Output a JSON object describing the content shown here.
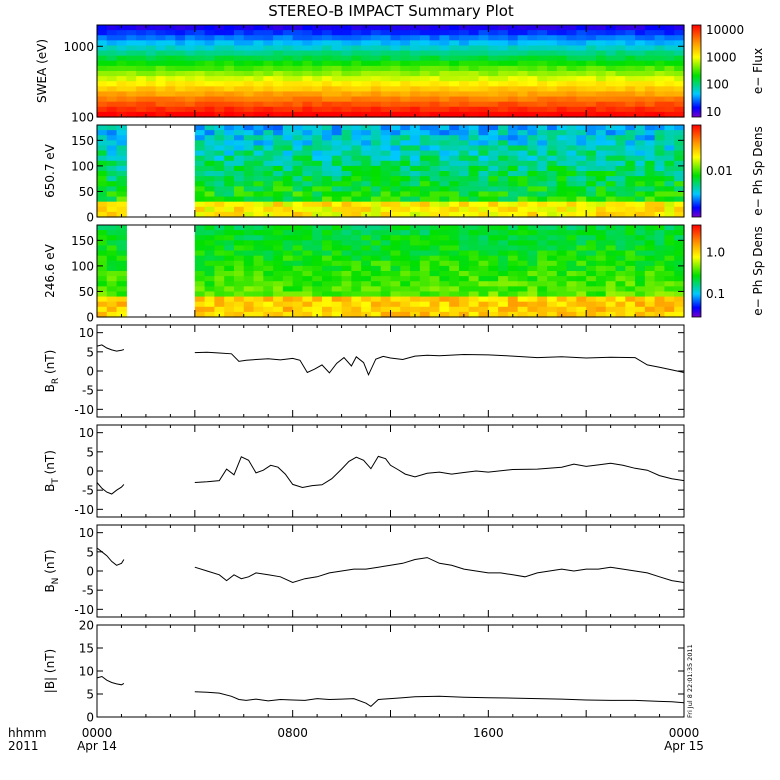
{
  "title": "STEREO-B IMPACT Summary Plot",
  "stamp": "Fri Jul 8 22:01:35 2011",
  "x_axis": {
    "row1_label": "hhmm",
    "row2_label": "2011",
    "ticks": [
      {
        "hour": 0,
        "top": "0000",
        "bottom": "Apr 14"
      },
      {
        "hour": 8,
        "top": "0800",
        "bottom": ""
      },
      {
        "hour": 16,
        "top": "1600",
        "bottom": ""
      },
      {
        "hour": 24,
        "top": "0000",
        "bottom": "Apr 15"
      }
    ]
  },
  "chart_data": [
    {
      "type": "heatmap",
      "ylabel": "SWEA (eV)",
      "yscale": "log",
      "ylim": [
        100,
        2000
      ],
      "yticks": [
        "1000",
        "100"
      ],
      "colorbar": {
        "label": "e− Flux",
        "scale": "log",
        "ticks": [
          "10000",
          "1000",
          "100",
          "10"
        ]
      }
    },
    {
      "type": "heatmap",
      "ylabel": "650.7 eV",
      "ylim": [
        0,
        180
      ],
      "yticks": [
        "150",
        "100",
        "50",
        "0"
      ],
      "data_gaps_hours": [
        [
          1.1,
          4.0
        ]
      ],
      "colorbar": {
        "label": "e− Ph Sp Dens",
        "scale": "log",
        "ticks": [
          "0.01"
        ]
      }
    },
    {
      "type": "heatmap",
      "ylabel": "246.6 eV",
      "ylim": [
        0,
        180
      ],
      "yticks": [
        "150",
        "100",
        "50",
        "0"
      ],
      "data_gaps_hours": [
        [
          1.1,
          4.0
        ]
      ],
      "colorbar": {
        "label": "e− Ph Sp Dens",
        "scale": "log",
        "ticks": [
          "1.0",
          "0.1"
        ]
      }
    },
    {
      "type": "line",
      "ylabel": "B_R (nT)",
      "ylabel_main": "B",
      "ylabel_sub": "R",
      "ylabel_unit": " (nT)",
      "ylim": [
        -12,
        12
      ],
      "yticks": [
        "10",
        "5",
        "0",
        "-5",
        "-10"
      ],
      "x": [
        0,
        0.2,
        0.4,
        0.6,
        0.8,
        1.0,
        1.1,
        4.0,
        4.5,
        5.0,
        5.5,
        5.8,
        6.1,
        6.5,
        7.0,
        7.5,
        8.0,
        8.3,
        8.6,
        8.9,
        9.2,
        9.5,
        9.8,
        10.1,
        10.4,
        10.6,
        10.9,
        11.1,
        11.4,
        11.7,
        12.0,
        12.5,
        13.0,
        13.5,
        14.0,
        15.0,
        16.0,
        17.0,
        18.0,
        19.0,
        20.0,
        21.0,
        22.0,
        22.5,
        23.0,
        23.5,
        24.0
      ],
      "y": [
        6.5,
        6.8,
        6.0,
        5.5,
        5.2,
        5.4,
        5.6,
        4.8,
        4.9,
        4.7,
        4.5,
        2.5,
        2.8,
        3.0,
        3.2,
        2.9,
        3.3,
        2.8,
        -0.4,
        0.5,
        1.6,
        -0.5,
        2.0,
        3.5,
        1.3,
        3.7,
        2.2,
        -1.0,
        3.1,
        3.8,
        3.4,
        3.0,
        3.9,
        4.1,
        4.0,
        4.3,
        4.2,
        3.9,
        3.5,
        3.7,
        3.4,
        3.6,
        3.5,
        1.6,
        1.0,
        0.3,
        -0.4
      ]
    },
    {
      "type": "line",
      "ylabel": "B_T (nT)",
      "ylabel_main": "B",
      "ylabel_sub": "T",
      "ylabel_unit": " (nT)",
      "ylim": [
        -12,
        12
      ],
      "yticks": [
        "10",
        "5",
        "0",
        "-5",
        "-10"
      ],
      "x": [
        0,
        0.2,
        0.4,
        0.6,
        0.8,
        1.0,
        1.1,
        4.0,
        4.5,
        5.0,
        5.3,
        5.6,
        5.9,
        6.2,
        6.5,
        6.8,
        7.1,
        7.4,
        7.7,
        8.0,
        8.4,
        8.8,
        9.2,
        9.6,
        10.0,
        10.3,
        10.6,
        10.9,
        11.2,
        11.5,
        11.8,
        12.0,
        12.3,
        12.6,
        13.0,
        13.5,
        14.0,
        14.5,
        15.0,
        15.5,
        16.0,
        17.0,
        18.0,
        19.0,
        19.5,
        20.0,
        20.5,
        21.0,
        21.5,
        22.0,
        22.5,
        23.0,
        23.5,
        24.0
      ],
      "y": [
        -3.0,
        -4.5,
        -5.5,
        -6.0,
        -5.0,
        -4.2,
        -3.5,
        -3.0,
        -2.8,
        -2.5,
        0.5,
        -1.0,
        3.7,
        2.8,
        -0.5,
        0.2,
        1.5,
        1.0,
        -0.8,
        -3.5,
        -4.3,
        -3.8,
        -3.6,
        -2.0,
        0.5,
        2.5,
        3.6,
        2.8,
        0.6,
        3.8,
        3.2,
        1.5,
        0.4,
        -0.8,
        -1.5,
        -0.6,
        -0.3,
        -0.8,
        -0.4,
        0.0,
        -0.3,
        0.4,
        0.5,
        1.0,
        1.8,
        1.2,
        1.6,
        2.0,
        1.5,
        0.7,
        0.2,
        -1.2,
        -2.0,
        -2.5
      ]
    },
    {
      "type": "line",
      "ylabel": "B_N (nT)",
      "ylabel_main": "B",
      "ylabel_sub": "N",
      "ylabel_unit": " (nT)",
      "ylim": [
        -12,
        12
      ],
      "yticks": [
        "10",
        "5",
        "0",
        "-5",
        "-10"
      ],
      "x": [
        0,
        0.2,
        0.4,
        0.6,
        0.8,
        1.0,
        1.1,
        4.0,
        4.5,
        5.0,
        5.3,
        5.6,
        5.9,
        6.2,
        6.5,
        7.0,
        7.5,
        8.0,
        8.5,
        9.0,
        9.5,
        10.0,
        10.5,
        11.0,
        11.5,
        12.0,
        12.5,
        13.0,
        13.5,
        14.0,
        14.5,
        15.0,
        15.5,
        16.0,
        16.5,
        17.0,
        17.5,
        18.0,
        18.5,
        19.0,
        19.5,
        20.0,
        20.5,
        21.0,
        21.5,
        22.0,
        22.5,
        23.0,
        23.5,
        24.0
      ],
      "y": [
        6.0,
        5.0,
        4.0,
        2.5,
        1.5,
        2.0,
        3.0,
        1.0,
        0.0,
        -1.0,
        -2.5,
        -1.0,
        -2.0,
        -1.5,
        -0.5,
        -1.0,
        -1.5,
        -3.0,
        -2.0,
        -1.5,
        -0.5,
        0.0,
        0.5,
        0.5,
        1.0,
        1.5,
        2.0,
        3.0,
        3.5,
        2.0,
        1.5,
        0.5,
        0.0,
        -0.5,
        -0.5,
        -1.0,
        -1.5,
        -0.5,
        0.0,
        0.5,
        0.0,
        0.5,
        0.5,
        1.0,
        0.5,
        0.0,
        -0.5,
        -1.5,
        -2.5,
        -3.0
      ]
    },
    {
      "type": "line",
      "ylabel": "|B| (nT)",
      "ylim": [
        0,
        20
      ],
      "yticks": [
        "20",
        "15",
        "10",
        "5",
        "0"
      ],
      "x": [
        0,
        0.2,
        0.4,
        0.6,
        0.8,
        1.0,
        1.1,
        4.0,
        4.5,
        5.0,
        5.5,
        5.8,
        6.1,
        6.5,
        7.0,
        7.5,
        8.0,
        8.5,
        9.0,
        9.5,
        10.0,
        10.5,
        11.0,
        11.2,
        11.5,
        12.0,
        12.5,
        13.0,
        14.0,
        15.0,
        16.0,
        17.0,
        18.0,
        19.0,
        20.0,
        21.0,
        22.0,
        22.5,
        23.0,
        23.5,
        24.0
      ],
      "y": [
        8.5,
        8.8,
        8.0,
        7.5,
        7.2,
        7.0,
        7.3,
        5.5,
        5.4,
        5.2,
        4.5,
        3.8,
        3.6,
        3.9,
        3.5,
        3.8,
        3.7,
        3.6,
        4.0,
        3.8,
        3.9,
        4.0,
        3.0,
        2.3,
        3.8,
        4.0,
        4.2,
        4.4,
        4.5,
        4.3,
        4.2,
        4.1,
        4.0,
        3.9,
        3.7,
        3.6,
        3.6,
        3.5,
        3.4,
        3.3,
        3.1
      ]
    }
  ]
}
